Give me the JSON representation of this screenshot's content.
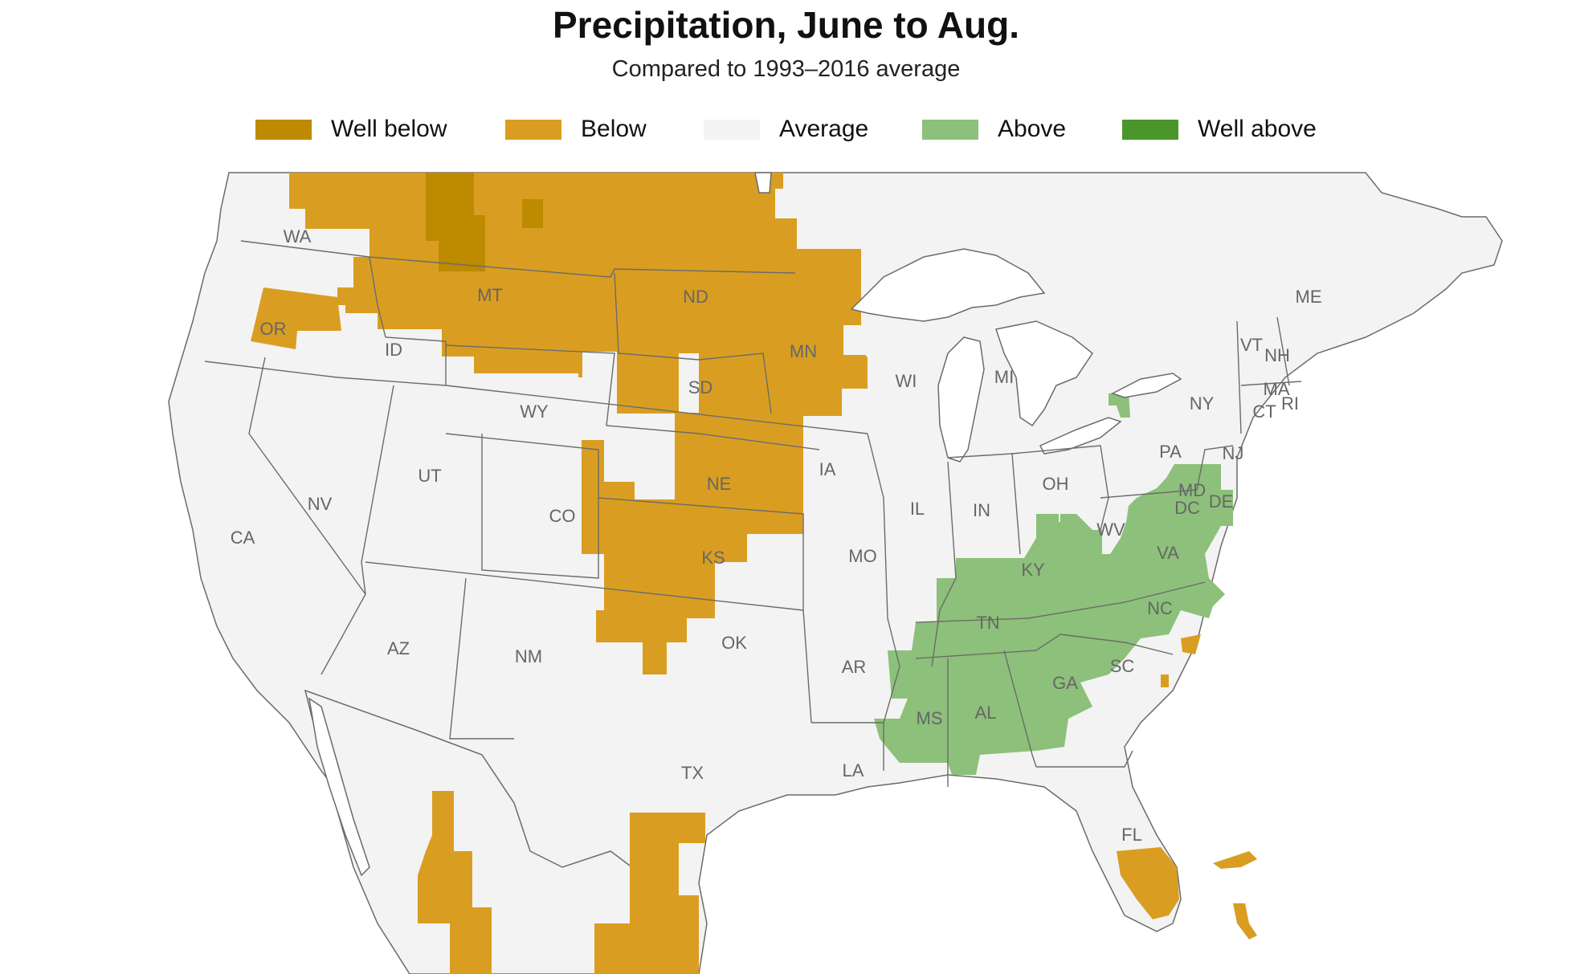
{
  "title": "Precipitation, June to Aug.",
  "subtitle": "Compared to 1993–2016 average",
  "legend": [
    {
      "label": "Well below",
      "color": "#bd8a00"
    },
    {
      "label": "Below",
      "color": "#d99e21"
    },
    {
      "label": "Average",
      "color": "#f3f3f3"
    },
    {
      "label": "Above",
      "color": "#8dc07a"
    },
    {
      "label": "Well above",
      "color": "#4a962b"
    }
  ],
  "colors": {
    "land": "#f3f3f3",
    "border": "#6b6b6b",
    "water": "#ffffff",
    "label": "#666666"
  },
  "state_labels": [
    "WA",
    "OR",
    "CA",
    "ID",
    "NV",
    "MT",
    "WY",
    "UT",
    "AZ",
    "CO",
    "NM",
    "ND",
    "SD",
    "NE",
    "KS",
    "OK",
    "TX",
    "MN",
    "IA",
    "MO",
    "AR",
    "LA",
    "WI",
    "IL",
    "MI",
    "IN",
    "OH",
    "KY",
    "TN",
    "MS",
    "AL",
    "GA",
    "FL",
    "SC",
    "NC",
    "VA",
    "WV",
    "PA",
    "NY",
    "MD",
    "DC",
    "DE",
    "NJ",
    "CT",
    "RI",
    "MA",
    "VT",
    "NH",
    "ME"
  ],
  "regions": {
    "well_below": [
      "northern Idaho / western Montana",
      "central Montana block"
    ],
    "below": [
      "Northern Plains: MT, ND, SD, NE, KS, eastern CO",
      "western MN",
      "northern WA/ID",
      "OR",
      "southwest TX / northern Mexico",
      "south Texas",
      "southern FL",
      "coastal NC",
      "Bahamas"
    ],
    "above": [
      "Southeast: KY, TN, MS, AL, GA, SC, NC, VA, MD, DE, WV",
      "western NY near Lake Ontario"
    ]
  }
}
